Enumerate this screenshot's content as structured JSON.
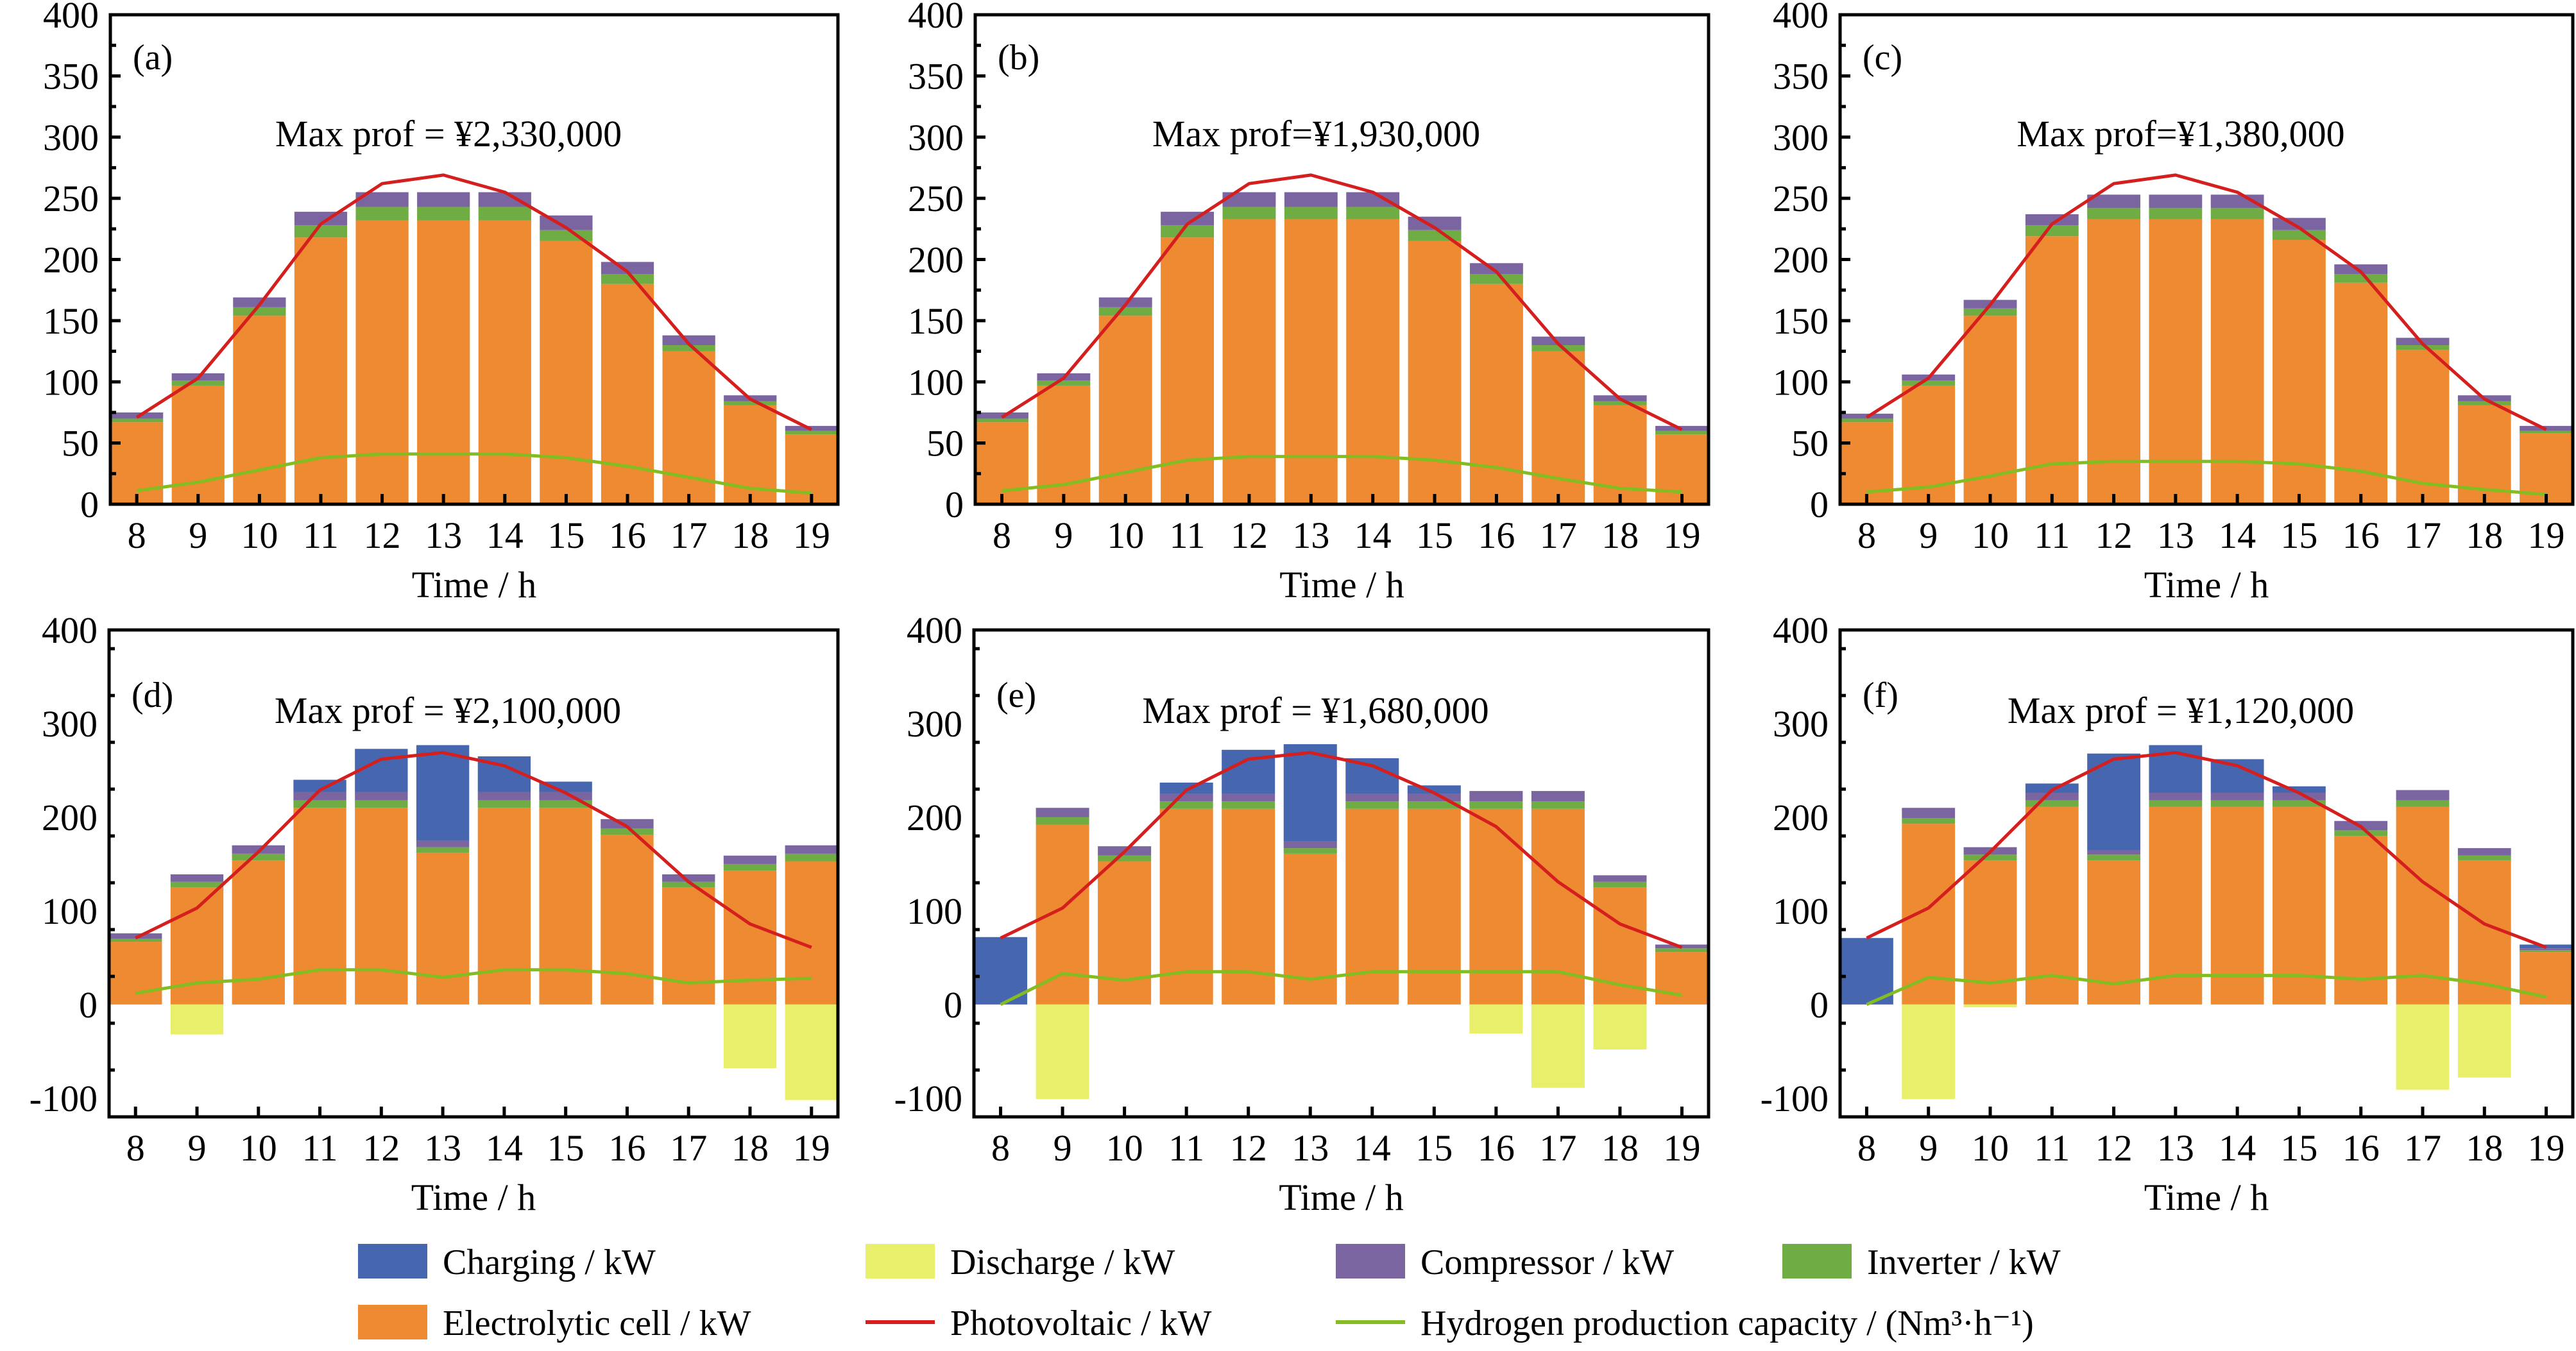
{
  "figure": {
    "legend": {
      "items": [
        {
          "key": "charging",
          "label": "Charging / kW",
          "kind": "bar"
        },
        {
          "key": "discharge",
          "label": "Discharge / kW",
          "kind": "bar"
        },
        {
          "key": "compressor",
          "label": "Compressor / kW",
          "kind": "bar"
        },
        {
          "key": "inverter",
          "label": "Inverter / kW",
          "kind": "bar"
        },
        {
          "key": "electrolytic",
          "label": "Electrolytic cell / kW",
          "kind": "bar"
        },
        {
          "key": "pv",
          "label": "Photovoltaic / kW",
          "kind": "line"
        },
        {
          "key": "h2",
          "label": "Hydrogen production capacity / (Nm³·h⁻¹)",
          "kind": "line"
        }
      ],
      "placement": "bottom"
    },
    "colors": {
      "charging": "#4667B0",
      "discharge": "#E8EF6A",
      "compressor": "#7B65A0",
      "inverter": "#6FAC43",
      "electrolytic": "#EE8A32",
      "pv": "#D51E1E",
      "h2": "#84BC22"
    }
  },
  "chart_data": [
    {
      "panel": "(a)",
      "type": "bar",
      "stacked": true,
      "annotation": "Max prof = ¥2,330,000",
      "xlabel": "Time / h",
      "ylabel": "",
      "ylim": [
        0,
        400
      ],
      "yticks": [
        0,
        50,
        100,
        150,
        200,
        250,
        300,
        350,
        400
      ],
      "categories": [
        "8",
        "9",
        "10",
        "11",
        "12",
        "13",
        "14",
        "15",
        "16",
        "17",
        "18",
        "19"
      ],
      "series": [
        {
          "name": "Electrolytic cell / kW",
          "key": "electrolytic",
          "values": [
            67,
            97,
            154,
            218,
            232,
            232,
            232,
            215,
            180,
            125,
            81,
            57
          ]
        },
        {
          "name": "Inverter / kW",
          "key": "inverter",
          "values": [
            3,
            4,
            7,
            10,
            11,
            11,
            11,
            9,
            8,
            5,
            3,
            3
          ]
        },
        {
          "name": "Compressor / kW",
          "key": "compressor",
          "values": [
            5,
            6,
            8,
            11,
            12,
            12,
            12,
            12,
            10,
            8,
            5,
            4
          ]
        },
        {
          "name": "Charging / kW",
          "key": "charging",
          "values": [
            0,
            0,
            0,
            0,
            0,
            0,
            0,
            0,
            0,
            0,
            0,
            0
          ]
        },
        {
          "name": "Discharge / kW",
          "key": "discharge",
          "values": [
            0,
            0,
            0,
            0,
            0,
            0,
            0,
            0,
            0,
            0,
            0,
            0
          ]
        },
        {
          "name": "Photovoltaic / kW",
          "key": "pv",
          "type": "line",
          "values": [
            71,
            103,
            163,
            229,
            262,
            269,
            255,
            226,
            190,
            131,
            86,
            61
          ]
        },
        {
          "name": "Hydrogen production capacity / (Nm³·h⁻¹)",
          "key": "h2",
          "type": "line",
          "values": [
            11,
            18,
            28,
            38,
            41,
            41,
            41,
            38,
            31,
            22,
            13,
            9
          ]
        }
      ]
    },
    {
      "panel": "(b)",
      "type": "bar",
      "stacked": true,
      "annotation": "Max prof=¥1,930,000",
      "xlabel": "Time / h",
      "ylabel": "",
      "ylim": [
        0,
        400
      ],
      "yticks": [
        0,
        50,
        100,
        150,
        200,
        250,
        300,
        350,
        400
      ],
      "categories": [
        "8",
        "9",
        "10",
        "11",
        "12",
        "13",
        "14",
        "15",
        "16",
        "17",
        "18",
        "19"
      ],
      "series": [
        {
          "name": "Electrolytic cell / kW",
          "key": "electrolytic",
          "values": [
            67,
            97,
            154,
            218,
            233,
            233,
            233,
            215,
            180,
            125,
            81,
            57
          ]
        },
        {
          "name": "Inverter / kW",
          "key": "inverter",
          "values": [
            3,
            4,
            7,
            10,
            10,
            10,
            10,
            9,
            8,
            5,
            3,
            3
          ]
        },
        {
          "name": "Compressor / kW",
          "key": "compressor",
          "values": [
            5,
            6,
            8,
            11,
            12,
            12,
            12,
            11,
            9,
            7,
            5,
            4
          ]
        },
        {
          "name": "Charging / kW",
          "key": "charging",
          "values": [
            0,
            0,
            0,
            0,
            0,
            0,
            0,
            0,
            0,
            0,
            0,
            0
          ]
        },
        {
          "name": "Discharge / kW",
          "key": "discharge",
          "values": [
            0,
            0,
            0,
            0,
            0,
            0,
            0,
            0,
            0,
            0,
            0,
            0
          ]
        },
        {
          "name": "Photovoltaic / kW",
          "key": "pv",
          "type": "line",
          "values": [
            71,
            103,
            163,
            229,
            262,
            269,
            255,
            226,
            190,
            131,
            86,
            61
          ]
        },
        {
          "name": "Hydrogen production capacity / (Nm³·h⁻¹)",
          "key": "h2",
          "type": "line",
          "values": [
            11,
            16,
            26,
            36,
            39,
            39,
            39,
            36,
            30,
            21,
            13,
            10
          ]
        }
      ]
    },
    {
      "panel": "(c)",
      "type": "bar",
      "stacked": true,
      "annotation": "Max prof=¥1,380,000",
      "xlabel": "Time / h",
      "ylabel": "",
      "ylim": [
        0,
        400
      ],
      "yticks": [
        0,
        50,
        100,
        150,
        200,
        250,
        300,
        350,
        400
      ],
      "categories": [
        "8",
        "9",
        "10",
        "11",
        "12",
        "13",
        "14",
        "15",
        "16",
        "17",
        "18",
        "19"
      ],
      "series": [
        {
          "name": "Electrolytic cell / kW",
          "key": "electrolytic",
          "values": [
            67,
            97,
            154,
            219,
            233,
            233,
            233,
            216,
            181,
            126,
            81,
            58
          ]
        },
        {
          "name": "Inverter / kW",
          "key": "inverter",
          "values": [
            3,
            4,
            6,
            9,
            9,
            9,
            9,
            8,
            7,
            4,
            3,
            2
          ]
        },
        {
          "name": "Compressor / kW",
          "key": "compressor",
          "values": [
            4,
            5,
            7,
            9,
            11,
            11,
            11,
            10,
            8,
            6,
            5,
            4
          ]
        },
        {
          "name": "Charging / kW",
          "key": "charging",
          "values": [
            0,
            0,
            0,
            0,
            0,
            0,
            0,
            0,
            0,
            0,
            0,
            0
          ]
        },
        {
          "name": "Discharge / kW",
          "key": "discharge",
          "values": [
            0,
            0,
            0,
            0,
            0,
            0,
            0,
            0,
            0,
            0,
            0,
            0
          ]
        },
        {
          "name": "Photovoltaic / kW",
          "key": "pv",
          "type": "line",
          "values": [
            71,
            103,
            163,
            229,
            262,
            269,
            255,
            226,
            190,
            131,
            86,
            61
          ]
        },
        {
          "name": "Hydrogen production capacity / (Nm³·h⁻¹)",
          "key": "h2",
          "type": "line",
          "values": [
            10,
            14,
            23,
            33,
            35,
            35,
            35,
            33,
            27,
            17,
            12,
            8
          ]
        }
      ]
    },
    {
      "panel": "(d)",
      "type": "bar",
      "stacked": true,
      "annotation": "Max prof = ¥2,100,000",
      "xlabel": "Time / h",
      "ylabel": "",
      "ylim": [
        -120,
        400
      ],
      "yticks": [
        -100,
        0,
        100,
        200,
        300,
        400
      ],
      "categories": [
        "8",
        "9",
        "10",
        "11",
        "12",
        "13",
        "14",
        "15",
        "16",
        "17",
        "18",
        "19"
      ],
      "series": [
        {
          "name": "Electrolytic cell / kW",
          "key": "electrolytic",
          "values": [
            67,
            125,
            154,
            210,
            210,
            162,
            210,
            210,
            181,
            125,
            143,
            153
          ]
        },
        {
          "name": "Inverter / kW",
          "key": "inverter",
          "values": [
            3,
            6,
            7,
            8,
            8,
            6,
            8,
            8,
            7,
            6,
            7,
            8
          ]
        },
        {
          "name": "Compressor / kW",
          "key": "compressor",
          "values": [
            6,
            8,
            9,
            9,
            9,
            7,
            9,
            9,
            10,
            8,
            9,
            9
          ]
        },
        {
          "name": "Charging / kW",
          "key": "charging",
          "values": [
            0,
            0,
            0,
            13,
            46,
            102,
            38,
            11,
            0,
            0,
            0,
            0
          ]
        },
        {
          "name": "Discharge / kW",
          "key": "discharge",
          "values": [
            0,
            -32,
            0,
            0,
            0,
            0,
            0,
            0,
            0,
            0,
            -68,
            -102
          ]
        },
        {
          "name": "Photovoltaic / kW",
          "key": "pv",
          "type": "line",
          "values": [
            71,
            103,
            163,
            229,
            262,
            269,
            255,
            226,
            190,
            131,
            86,
            61
          ]
        },
        {
          "name": "Hydrogen production capacity / (Nm³·h⁻¹)",
          "key": "h2",
          "type": "line",
          "values": [
            12,
            23,
            27,
            37,
            37,
            29,
            37,
            37,
            33,
            23,
            26,
            28
          ]
        }
      ]
    },
    {
      "panel": "(e)",
      "type": "bar",
      "stacked": true,
      "annotation": "Max prof = ¥1,680,000",
      "xlabel": "Time / h",
      "ylabel": "",
      "ylim": [
        -120,
        400
      ],
      "yticks": [
        -100,
        0,
        100,
        200,
        300,
        400
      ],
      "categories": [
        "8",
        "9",
        "10",
        "11",
        "12",
        "13",
        "14",
        "15",
        "16",
        "17",
        "18",
        "19"
      ],
      "series": [
        {
          "name": "Electrolytic cell / kW",
          "key": "electrolytic",
          "values": [
            0,
            192,
            153,
            209,
            209,
            161,
            209,
            209,
            209,
            209,
            125,
            56
          ]
        },
        {
          "name": "Inverter / kW",
          "key": "inverter",
          "values": [
            0,
            8,
            6,
            8,
            8,
            6,
            8,
            8,
            8,
            8,
            6,
            4
          ]
        },
        {
          "name": "Compressor / kW",
          "key": "compressor",
          "values": [
            0,
            10,
            10,
            8,
            8,
            7,
            8,
            8,
            11,
            11,
            7,
            4
          ]
        },
        {
          "name": "Charging / kW",
          "key": "charging",
          "values": [
            72,
            0,
            0,
            12,
            47,
            104,
            38,
            9,
            0,
            0,
            0,
            0
          ]
        },
        {
          "name": "Discharge / kW",
          "key": "discharge",
          "values": [
            0,
            -101,
            0,
            0,
            0,
            0,
            0,
            0,
            -31,
            -89,
            -48,
            0
          ]
        },
        {
          "name": "Photovoltaic / kW",
          "key": "pv",
          "type": "line",
          "values": [
            71,
            103,
            163,
            229,
            262,
            269,
            255,
            226,
            190,
            131,
            86,
            61
          ]
        },
        {
          "name": "Hydrogen production capacity / (Nm³·h⁻¹)",
          "key": "h2",
          "type": "line",
          "values": [
            0,
            33,
            26,
            35,
            35,
            27,
            35,
            35,
            35,
            35,
            21,
            10
          ]
        }
      ]
    },
    {
      "panel": "(f)",
      "type": "bar",
      "stacked": true,
      "annotation": "Max prof = ¥1,120,000",
      "xlabel": "Time / h",
      "ylabel": "",
      "ylim": [
        -120,
        400
      ],
      "yticks": [
        -100,
        0,
        100,
        200,
        300,
        400
      ],
      "categories": [
        "8",
        "9",
        "10",
        "11",
        "12",
        "13",
        "14",
        "15",
        "16",
        "17",
        "18",
        "19"
      ],
      "series": [
        {
          "name": "Electrolytic cell / kW",
          "key": "electrolytic",
          "values": [
            0,
            193,
            154,
            211,
            154,
            211,
            211,
            211,
            180,
            211,
            154,
            56
          ]
        },
        {
          "name": "Inverter / kW",
          "key": "inverter",
          "values": [
            0,
            6,
            6,
            7,
            6,
            7,
            7,
            7,
            6,
            7,
            5,
            2
          ]
        },
        {
          "name": "Compressor / kW",
          "key": "compressor",
          "values": [
            0,
            11,
            8,
            8,
            5,
            8,
            8,
            8,
            10,
            11,
            8,
            2
          ]
        },
        {
          "name": "Charging / kW",
          "key": "charging",
          "values": [
            71,
            0,
            0,
            10,
            103,
            51,
            36,
            7,
            0,
            0,
            0,
            4
          ]
        },
        {
          "name": "Discharge / kW",
          "key": "discharge",
          "values": [
            0,
            -101,
            -3,
            0,
            0,
            0,
            0,
            0,
            0,
            -91,
            -78,
            0
          ]
        },
        {
          "name": "Photovoltaic / kW",
          "key": "pv",
          "type": "line",
          "values": [
            71,
            103,
            163,
            229,
            262,
            269,
            255,
            226,
            190,
            131,
            86,
            61
          ]
        },
        {
          "name": "Hydrogen production capacity / (Nm³·h⁻¹)",
          "key": "h2",
          "type": "line",
          "values": [
            0,
            29,
            23,
            31,
            22,
            31,
            31,
            31,
            27,
            31,
            22,
            8
          ]
        }
      ]
    }
  ]
}
